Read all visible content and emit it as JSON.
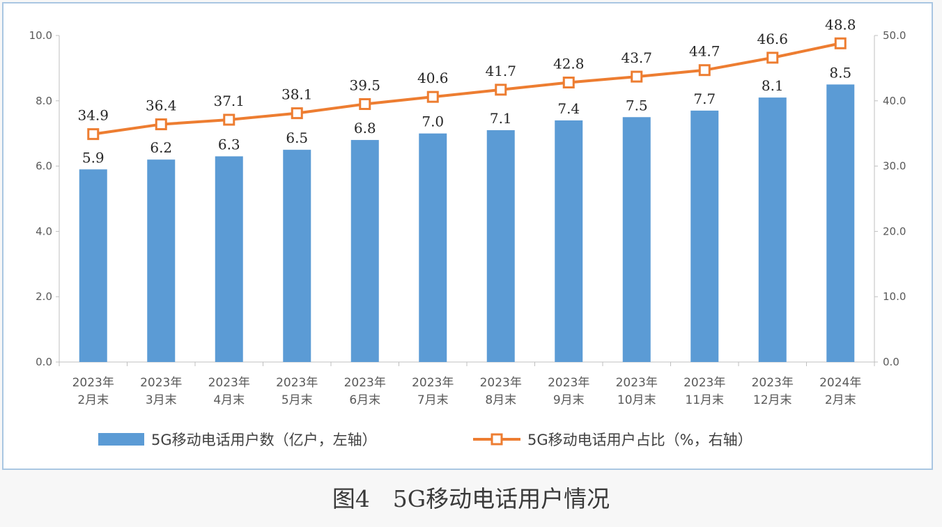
{
  "chart_data": {
    "type": "bar",
    "categories": [
      [
        "2023年",
        "2月末"
      ],
      [
        "2023年",
        "3月末"
      ],
      [
        "2023年",
        "4月末"
      ],
      [
        "2023年",
        "5月末"
      ],
      [
        "2023年",
        "6月末"
      ],
      [
        "2023年",
        "7月末"
      ],
      [
        "2023年",
        "8月末"
      ],
      [
        "2023年",
        "9月末"
      ],
      [
        "2023年",
        "10月末"
      ],
      [
        "2023年",
        "11月末"
      ],
      [
        "2023年",
        "12月末"
      ],
      [
        "2024年",
        "2月末"
      ]
    ],
    "series": [
      {
        "name": "5G移动电话用户数（亿户，左轴）",
        "type": "bar",
        "axis": "left",
        "color": "#5b9bd5",
        "values": [
          5.9,
          6.2,
          6.3,
          6.5,
          6.8,
          7.0,
          7.1,
          7.4,
          7.5,
          7.7,
          8.1,
          8.5
        ],
        "labels": [
          "5.9",
          "6.2",
          "6.3",
          "6.5",
          "6.8",
          "7.0",
          "7.1",
          "7.4",
          "7.5",
          "7.7",
          "8.1",
          "8.5"
        ]
      },
      {
        "name": "5G移动电话用户占比（%，右轴）",
        "type": "line",
        "axis": "right",
        "color": "#ed7d31",
        "marker": "square",
        "values": [
          34.9,
          36.4,
          37.1,
          38.1,
          39.5,
          40.6,
          41.7,
          42.8,
          43.7,
          44.7,
          46.6,
          48.8
        ],
        "labels": [
          "34.9",
          "36.4",
          "37.1",
          "38.1",
          "39.5",
          "40.6",
          "41.7",
          "42.8",
          "43.7",
          "44.7",
          "46.6",
          "48.8"
        ]
      }
    ],
    "y_left": {
      "lim": [
        0,
        10
      ],
      "ticks": [
        "0.0",
        "2.0",
        "4.0",
        "6.0",
        "8.0",
        "10.0"
      ]
    },
    "y_right": {
      "lim": [
        0,
        50
      ],
      "ticks": [
        "0.0",
        "10.0",
        "20.0",
        "30.0",
        "40.0",
        "50.0"
      ]
    },
    "grid": false,
    "legend": "bottom",
    "title": "图4　5G移动电话用户情况"
  }
}
